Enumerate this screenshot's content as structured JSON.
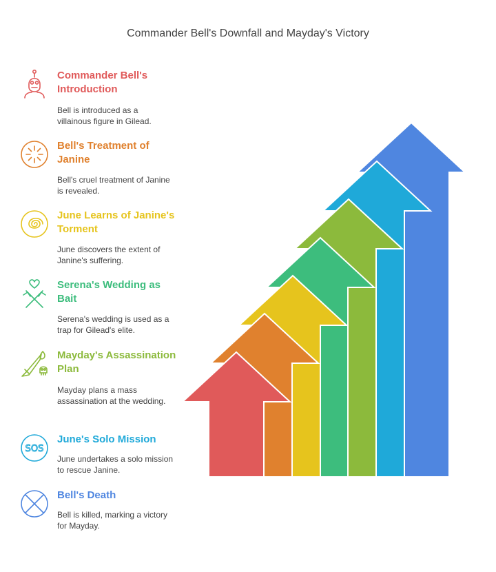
{
  "title": "Commander Bell's Downfall and Mayday's Victory",
  "steps": [
    {
      "heading": "Commander Bell's Introduction",
      "desc": "Bell is introduced as a villainous figure in Gilead.",
      "color": "#e05a5a",
      "icon": "masked-villain-icon"
    },
    {
      "heading": "Bell's Treatment of Janine",
      "desc": "Bell's cruel treatment of Janine is revealed.",
      "color": "#e0812e",
      "icon": "burst-circle-icon"
    },
    {
      "heading": "June Learns of Janine's Torment",
      "desc": "June discovers the extent of Janine's suffering.",
      "color": "#e6c41d",
      "icon": "spiral-icon"
    },
    {
      "heading": "Serena's Wedding as Bait",
      "desc": "Serena's wedding is used as a trap for Gilead's elite.",
      "color": "#3dbd7d",
      "icon": "heart-trap-icon"
    },
    {
      "heading": "Mayday's Assassination Plan",
      "desc": "Mayday plans a mass assassination at the wedding.",
      "color": "#8cba3c",
      "icon": "knife-skull-icon"
    },
    {
      "heading": "June's Solo Mission",
      "desc": "June undertakes a solo mission to rescue Janine.",
      "color": "#1fa9d9",
      "icon": "sos-icon"
    },
    {
      "heading": "Bell's Death",
      "desc": "Bell is killed, marking a victory for Mayday.",
      "color": "#4f86e0",
      "icon": "x-circle-icon"
    }
  ]
}
